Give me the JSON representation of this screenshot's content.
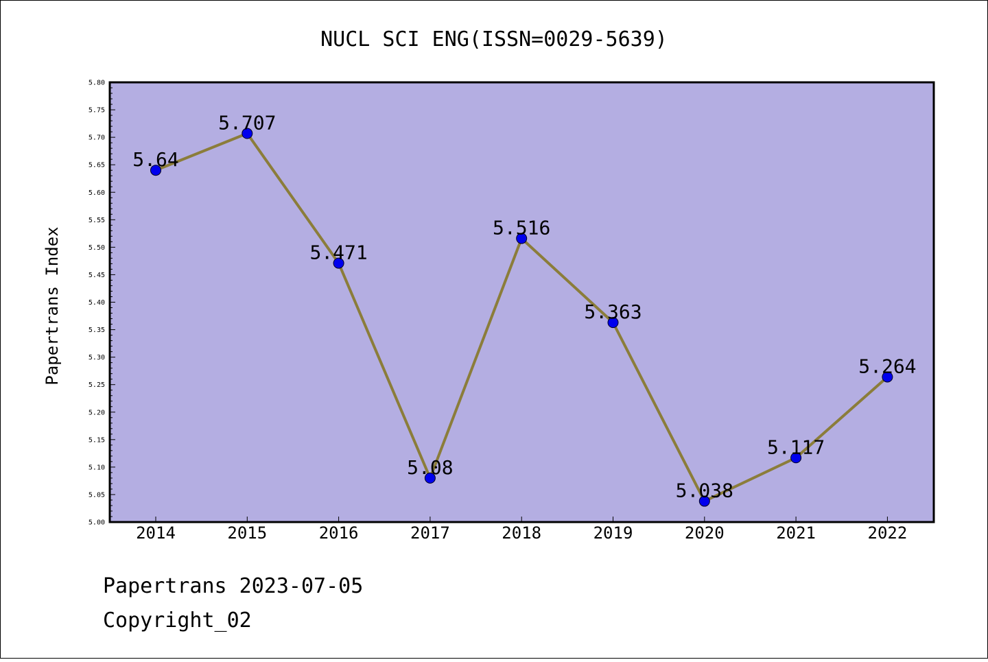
{
  "chart_data": {
    "type": "line",
    "title": "NUCL SCI ENG(ISSN=0029-5639)",
    "xlabel": "",
    "ylabel": "Papertrans Index",
    "categories": [
      "2014",
      "2015",
      "2016",
      "2017",
      "2018",
      "2019",
      "2020",
      "2021",
      "2022"
    ],
    "series": [
      {
        "values": [
          5.64,
          5.707,
          5.471,
          5.08,
          5.516,
          5.363,
          5.038,
          5.117,
          5.264
        ],
        "labels": [
          "5.64",
          "5.707",
          "5.471",
          "5.08",
          "5.516",
          "5.363",
          "5.038",
          "5.117",
          "5.264"
        ]
      }
    ],
    "ylim": [
      5.0,
      5.8
    ],
    "yticks": [
      "5.00",
      "5.05",
      "5.10",
      "5.15",
      "5.20",
      "5.25",
      "5.30",
      "5.35",
      "5.40",
      "5.45",
      "5.50",
      "5.55",
      "5.60",
      "5.65",
      "5.70",
      "5.75",
      "5.80"
    ],
    "grid": false,
    "colors": {
      "plot_background": "#b4aee2",
      "line": "#8b7d3a",
      "marker": "#0000ee"
    }
  },
  "footer": {
    "line1": "Papertrans 2023-07-05",
    "line2": "Copyright_02"
  }
}
